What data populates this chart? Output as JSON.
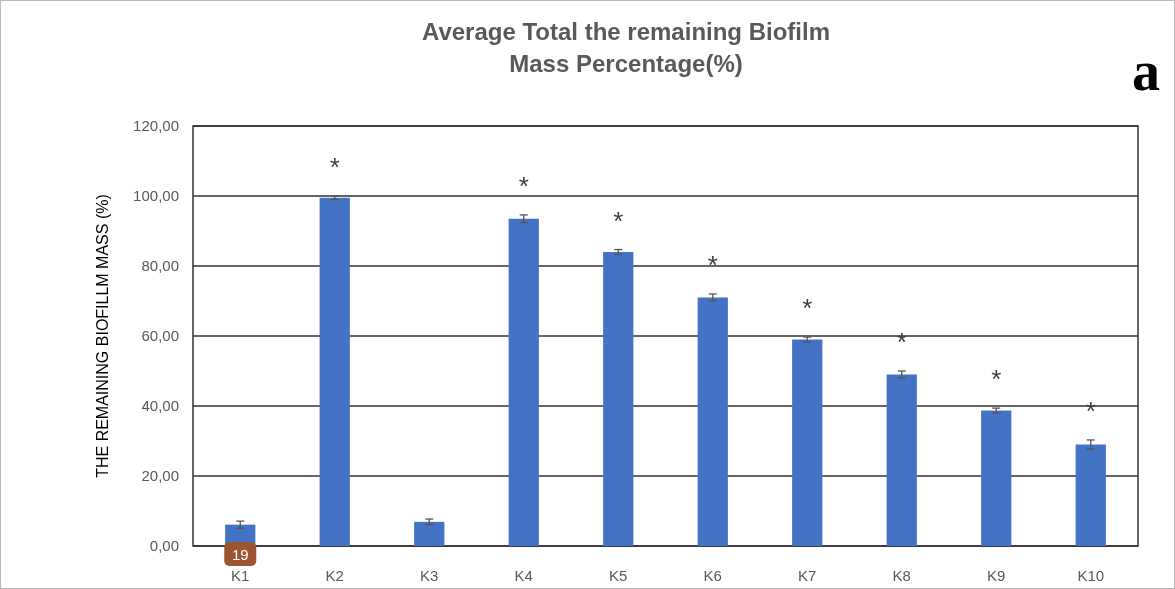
{
  "chart_data": {
    "type": "bar",
    "title": "Average Total the remaining Biofilm\nMass Percentage(%)",
    "ylabel": "THE REMAINING BIOFILLM MASS (%)",
    "categories": [
      "K1",
      "K2",
      "K3",
      "K4",
      "K5",
      "K6",
      "K7",
      "K8",
      "K9",
      "K10"
    ],
    "values": [
      6.1,
      99.5,
      6.9,
      93.5,
      84,
      71,
      59,
      49,
      38.7,
      29
    ],
    "errors": [
      1,
      0.5,
      0.8,
      1.1,
      0.7,
      1,
      0.7,
      1,
      0.7,
      1.3
    ],
    "color": "#4472c4",
    "ylim": [
      0,
      120
    ],
    "yticks": [
      {
        "value": 0,
        "label": "0,00"
      },
      {
        "value": 20,
        "label": "20,00"
      },
      {
        "value": 40,
        "label": "40,00"
      },
      {
        "value": 60,
        "label": "60,00"
      },
      {
        "value": 80,
        "label": "80,00"
      },
      {
        "value": 100,
        "label": "100,00"
      },
      {
        "value": 120,
        "label": "120,00"
      }
    ],
    "grid": "y",
    "value_labels": [
      null,
      "*",
      null,
      "*",
      "*",
      "*",
      "*",
      "*",
      "*",
      "*"
    ],
    "annotations": [
      "a",
      "19"
    ]
  }
}
